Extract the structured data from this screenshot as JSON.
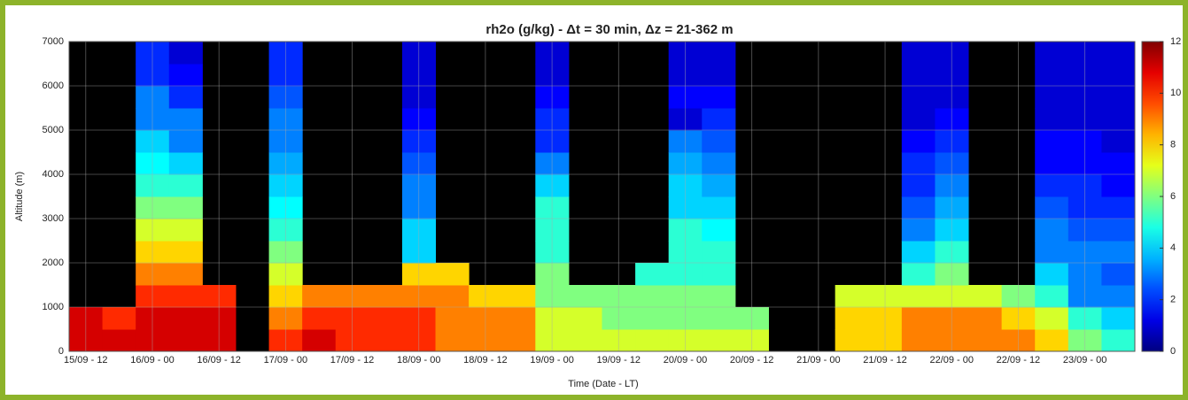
{
  "chart_data": {
    "type": "heatmap",
    "title": "rh2o (g/kg) - Δt = 30 min, Δz = 21-362 m",
    "xlabel": "Time (Date - LT)",
    "ylabel": "Altitude (m)",
    "categories": [
      "15/09 - 12",
      null,
      "16/09 - 00",
      null,
      "16/09 - 12",
      null,
      "17/09 - 00",
      null,
      "17/09 - 12",
      null,
      "18/09 - 00",
      null,
      "18/09 - 12",
      null,
      "19/09 - 00",
      null,
      "19/09 - 12",
      null,
      "20/09 - 00",
      null,
      "20/09 - 12",
      null,
      "21/09 - 00",
      null,
      "21/09 - 12",
      null,
      "22/09 - 00",
      null,
      "22/09 - 12",
      null,
      "23/09 - 00",
      null
    ],
    "ybins": [
      0,
      500,
      1000,
      1500,
      2000,
      2500,
      3000,
      3500,
      4000,
      4500,
      5000,
      5500,
      6000,
      6500,
      7000
    ],
    "ylim": [
      0,
      7000
    ],
    "yticks": [
      0,
      1000,
      2000,
      3000,
      4000,
      5000,
      6000,
      7000
    ],
    "clim": [
      0,
      12
    ],
    "cticks": [
      0,
      2,
      4,
      6,
      8,
      10,
      12
    ],
    "colormap": "jet",
    "grid": true,
    "z": [
      [
        11,
        11,
        null,
        null,
        null,
        null,
        null,
        null,
        null,
        null,
        null,
        null,
        null,
        null
      ],
      [
        11,
        10,
        null,
        null,
        null,
        null,
        null,
        null,
        null,
        null,
        null,
        null,
        null,
        null
      ],
      [
        11,
        11,
        10,
        9,
        8,
        7,
        6,
        5,
        4.5,
        4,
        3,
        3,
        2,
        2
      ],
      [
        11,
        11,
        10,
        9,
        8,
        7,
        6,
        5,
        4,
        3,
        3,
        2,
        1.5,
        1
      ],
      [
        11,
        11,
        10,
        null,
        null,
        null,
        null,
        null,
        null,
        null,
        null,
        null,
        null,
        null
      ],
      [
        null,
        null,
        null,
        null,
        null,
        null,
        null,
        null,
        null,
        null,
        null,
        null,
        null,
        null
      ],
      [
        10,
        9,
        8,
        7,
        6,
        5,
        4.5,
        4,
        3.5,
        3,
        3,
        2.5,
        2,
        2
      ],
      [
        11,
        10,
        9,
        null,
        null,
        null,
        null,
        null,
        null,
        null,
        null,
        null,
        null,
        null
      ],
      [
        10,
        10,
        9,
        null,
        null,
        null,
        null,
        null,
        null,
        null,
        null,
        null,
        null,
        null
      ],
      [
        10,
        10,
        9,
        null,
        null,
        null,
        null,
        null,
        null,
        null,
        null,
        null,
        null,
        null
      ],
      [
        10,
        10,
        9,
        8,
        4,
        4,
        3,
        3,
        2.5,
        2,
        1.5,
        1,
        1,
        1
      ],
      [
        9,
        9,
        9,
        8,
        null,
        null,
        null,
        null,
        null,
        null,
        null,
        null,
        null,
        null
      ],
      [
        9,
        9,
        8,
        null,
        null,
        null,
        null,
        null,
        null,
        null,
        null,
        null,
        null,
        null
      ],
      [
        9,
        9,
        8,
        null,
        null,
        null,
        null,
        null,
        null,
        null,
        null,
        null,
        null,
        null
      ],
      [
        7,
        7,
        6,
        6,
        5,
        5,
        5,
        4,
        3,
        2,
        2,
        1.5,
        1,
        1
      ],
      [
        7,
        7,
        6,
        null,
        null,
        null,
        null,
        null,
        null,
        null,
        null,
        null,
        null,
        null
      ],
      [
        7,
        6,
        6,
        null,
        null,
        null,
        null,
        null,
        null,
        null,
        null,
        null,
        null,
        null
      ],
      [
        7,
        6,
        6,
        5,
        null,
        null,
        null,
        null,
        null,
        null,
        null,
        null,
        null,
        null
      ],
      [
        7,
        6,
        6,
        5,
        5,
        5,
        4,
        4,
        3.5,
        3,
        1,
        1.5,
        1,
        1
      ],
      [
        7,
        6,
        6,
        5,
        5,
        4.5,
        4,
        3.5,
        3,
        2.5,
        2,
        1.5,
        1,
        1
      ],
      [
        7,
        6,
        null,
        null,
        null,
        null,
        null,
        null,
        null,
        null,
        null,
        null,
        null,
        null
      ],
      [
        null,
        null,
        null,
        null,
        null,
        null,
        null,
        null,
        null,
        null,
        null,
        null,
        null,
        null
      ],
      [
        null,
        null,
        null,
        null,
        null,
        null,
        null,
        null,
        null,
        null,
        null,
        null,
        null,
        null
      ],
      [
        8,
        8,
        7,
        null,
        null,
        null,
        null,
        null,
        null,
        null,
        null,
        null,
        null,
        null
      ],
      [
        8,
        8,
        7,
        null,
        null,
        null,
        null,
        null,
        null,
        null,
        null,
        null,
        null,
        null
      ],
      [
        9,
        9,
        7,
        5,
        4,
        3,
        2.5,
        2,
        2,
        1.5,
        1,
        1,
        1,
        1
      ],
      [
        9,
        9,
        7,
        6,
        5,
        4,
        3.5,
        3,
        2.5,
        2,
        1.5,
        1,
        1,
        1
      ],
      [
        9,
        9,
        7,
        null,
        null,
        null,
        null,
        null,
        null,
        null,
        null,
        null,
        null,
        null
      ],
      [
        9,
        8,
        6,
        null,
        null,
        null,
        null,
        null,
        null,
        null,
        null,
        null,
        null,
        null
      ],
      [
        8,
        7,
        5,
        4,
        3,
        3,
        2.5,
        2,
        1.5,
        1.5,
        1,
        1,
        1,
        1
      ],
      [
        6,
        5,
        3,
        3,
        3,
        2.5,
        2,
        2,
        1.5,
        1.5,
        1,
        1,
        1,
        1
      ],
      [
        5,
        4,
        3,
        2.5,
        3,
        2.5,
        2,
        1.5,
        1.5,
        1,
        1,
        1,
        1,
        1
      ]
    ]
  }
}
